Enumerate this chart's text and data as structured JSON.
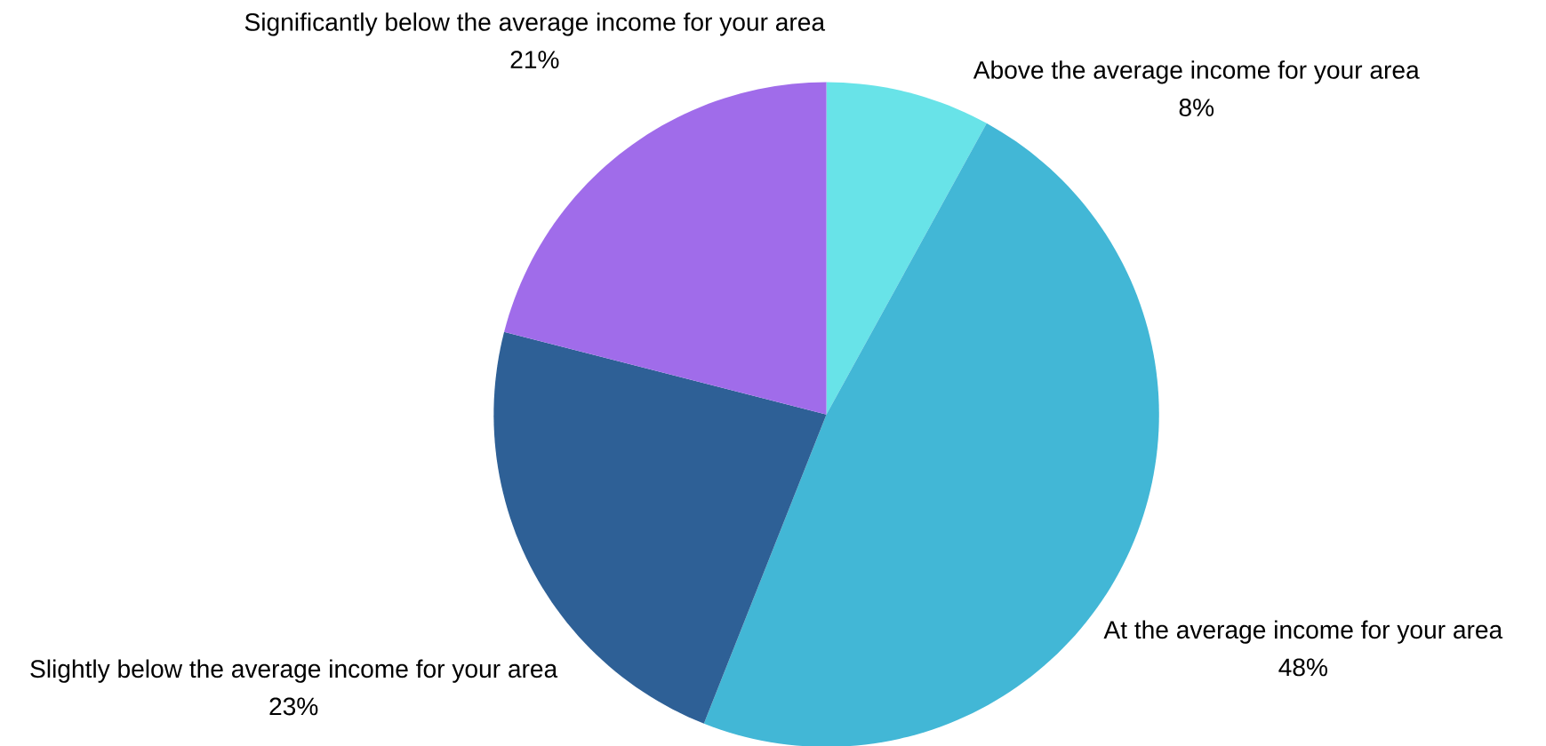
{
  "chart_data": {
    "type": "pie",
    "categories": [
      "Above the average income for your area",
      "At the average income for your area",
      "Slightly below the average income for your area",
      "Significantly below the average income for your area"
    ],
    "values": [
      8,
      48,
      23,
      21
    ],
    "value_labels": [
      "8%",
      "48%",
      "23%",
      "21%"
    ],
    "colors": [
      "#68e3e8",
      "#42b7d6",
      "#2e6096",
      "#a06cea"
    ]
  }
}
